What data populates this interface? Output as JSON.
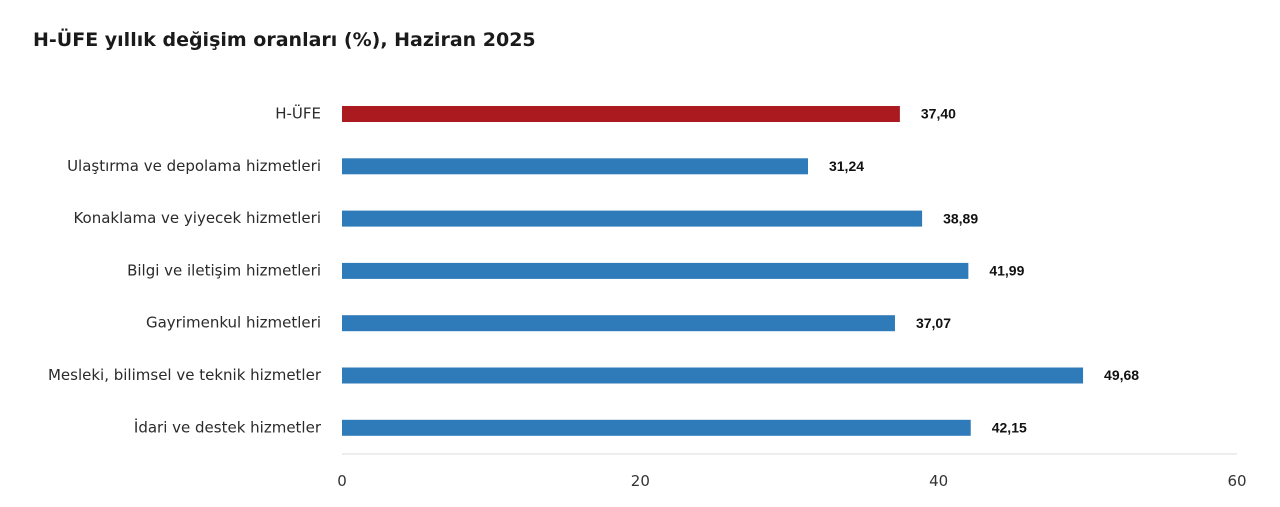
{
  "colors": {
    "highlight": "#aa1a1f",
    "bar": "#2f7ab8",
    "axis": "#dcdcdc"
  },
  "chart_data": {
    "type": "bar",
    "orientation": "horizontal",
    "title": "H-ÜFE yıllık değişim oranları (%), Haziran 2025",
    "xlabel": "",
    "ylabel": "",
    "xlim": [
      0,
      60
    ],
    "ticks": [
      "0",
      "20",
      "40",
      "60"
    ],
    "tick_values": [
      0,
      20,
      40,
      60
    ],
    "grid": false,
    "legend": "none",
    "categories": [
      "H-ÜFE",
      "Ulaştırma ve depolama hizmetleri",
      "Konaklama ve yiyecek hizmetleri",
      "Bilgi ve iletişim hizmetleri",
      "Gayrimenkul hizmetleri",
      "Mesleki, bilimsel ve teknik hizmetler",
      "İdari ve destek hizmetler"
    ],
    "values": [
      37.4,
      31.24,
      38.89,
      41.99,
      37.07,
      49.68,
      42.15
    ],
    "value_labels": [
      "37,40",
      "31,24",
      "38,89",
      "41,99",
      "37,07",
      "49,68",
      "42,15"
    ],
    "highlighted_category": "H-ÜFE"
  }
}
